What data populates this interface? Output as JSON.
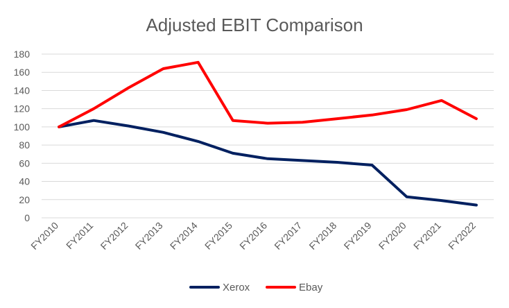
{
  "chart_data": {
    "type": "line",
    "title": "Adjusted EBIT Comparison",
    "xlabel": "",
    "ylabel": "",
    "categories": [
      "FY2010",
      "FY2011",
      "FY2012",
      "FY2013",
      "FY2014",
      "FY2015",
      "FY2016",
      "FY2017",
      "FY2018",
      "FY2019",
      "FY2020",
      "FY2021",
      "FY2022"
    ],
    "ylim": [
      0,
      180
    ],
    "yticks": [
      0,
      20,
      40,
      60,
      80,
      100,
      120,
      140,
      160,
      180
    ],
    "grid": true,
    "legend": "bottom",
    "series": [
      {
        "name": "Xerox",
        "color": "#002060",
        "values": [
          100,
          107,
          101,
          94,
          84,
          71,
          65,
          63,
          61,
          58,
          23,
          19,
          14
        ]
      },
      {
        "name": "Ebay",
        "color": "#ff0000",
        "values": [
          100,
          120,
          143,
          164,
          171,
          107,
          104,
          105,
          109,
          113,
          119,
          129,
          109
        ]
      }
    ]
  }
}
